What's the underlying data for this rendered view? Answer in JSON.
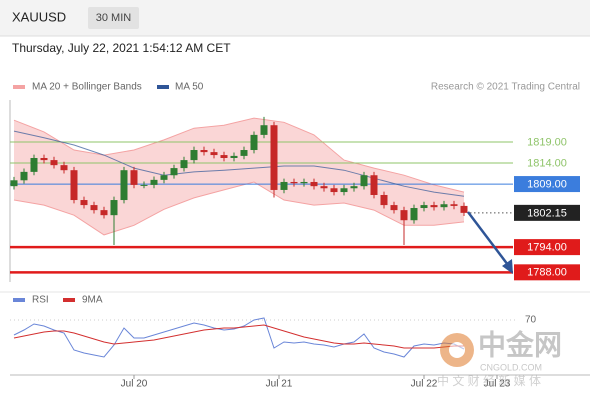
{
  "header": {
    "symbol": "XAUUSD",
    "timeframe": "30 MIN",
    "datetime": "Thursday, July 22, 2021 1:54:12 AM CET"
  },
  "watermark": {
    "logo": "中金网",
    "domain": "CNGOLD.COM",
    "tagline": "中 文 财 经 新 媒 体"
  },
  "chart_data": [
    {
      "type": "candlestick",
      "credit": "Research © 2021 Trading Central",
      "up_color": "#2e7d32",
      "down_color": "#c62828",
      "xlim": [
        -0.4,
        57.6
      ],
      "ylim": [
        1785.7,
        1829
      ],
      "x": [
        0,
        1,
        2,
        3,
        4,
        5,
        6,
        7,
        8,
        9,
        10,
        11,
        12,
        13,
        14,
        15,
        16,
        17,
        18,
        19,
        20,
        21,
        22,
        23,
        24,
        25,
        26,
        27,
        28,
        29,
        30,
        31,
        32,
        33,
        34,
        35,
        36,
        37,
        38,
        39,
        40,
        41,
        42,
        43,
        44,
        45
      ],
      "open": [
        1808.5,
        1809.9,
        1811.9,
        1815.2,
        1814.7,
        1813.5,
        1812.3,
        1805.2,
        1804.0,
        1802.8,
        1801.6,
        1805.2,
        1812.3,
        1808.8,
        1808.8,
        1810.0,
        1811.1,
        1812.8,
        1814.7,
        1817.1,
        1816.6,
        1815.9,
        1815.2,
        1815.7,
        1817.1,
        1820.7,
        1823.0,
        1807.6,
        1809.5,
        1809.2,
        1809.5,
        1808.5,
        1808.0,
        1807.1,
        1808.0,
        1808.5,
        1811.1,
        1806.4,
        1804.0,
        1802.8,
        1800.4,
        1803.3,
        1804.0,
        1803.5,
        1804.2,
        1803.8
      ],
      "high": [
        1810.7,
        1812.7,
        1816.0,
        1816.0,
        1815.5,
        1814.3,
        1813.1,
        1806.0,
        1804.8,
        1803.6,
        1806.0,
        1813.1,
        1813.1,
        1809.6,
        1810.8,
        1811.9,
        1813.6,
        1815.5,
        1817.9,
        1817.9,
        1817.4,
        1816.7,
        1816.5,
        1817.9,
        1821.5,
        1825.0,
        1823.8,
        1810.3,
        1810.3,
        1810.3,
        1810.3,
        1809.3,
        1808.8,
        1808.8,
        1809.3,
        1811.9,
        1811.9,
        1807.2,
        1804.8,
        1803.6,
        1804.1,
        1804.8,
        1804.8,
        1805.0,
        1805.0,
        1804.6
      ],
      "low": [
        1807.7,
        1809.1,
        1811.1,
        1813.9,
        1812.7,
        1811.5,
        1804.4,
        1803.2,
        1802.0,
        1800.8,
        1794.5,
        1804.4,
        1808.0,
        1808.0,
        1808.0,
        1809.2,
        1810.3,
        1812.0,
        1813.9,
        1815.8,
        1815.1,
        1814.4,
        1814.4,
        1814.9,
        1816.3,
        1819.9,
        1805.8,
        1806.8,
        1808.4,
        1808.4,
        1807.7,
        1807.2,
        1806.3,
        1806.3,
        1807.2,
        1807.7,
        1805.6,
        1803.2,
        1802.0,
        1794.5,
        1799.6,
        1802.5,
        1802.7,
        1802.7,
        1803.0,
        1801.4
      ],
      "close": [
        1809.9,
        1811.9,
        1815.2,
        1814.7,
        1813.5,
        1812.3,
        1805.2,
        1804.0,
        1802.8,
        1801.6,
        1805.2,
        1812.3,
        1808.8,
        1808.8,
        1810.0,
        1811.1,
        1812.8,
        1814.7,
        1817.1,
        1816.6,
        1815.9,
        1815.2,
        1815.7,
        1817.1,
        1820.7,
        1823.0,
        1807.6,
        1809.5,
        1809.2,
        1809.5,
        1808.5,
        1808.0,
        1807.1,
        1808.0,
        1808.5,
        1811.1,
        1806.4,
        1804.0,
        1802.8,
        1800.4,
        1803.3,
        1804.0,
        1803.5,
        1804.2,
        1803.8,
        1802.15
      ],
      "bollinger": {
        "name": "MA 20 + Bollinger Bands",
        "color": "#f4a3a3",
        "x": [
          0,
          3,
          6,
          9,
          12,
          15,
          18,
          21,
          24,
          27,
          30,
          33,
          36,
          39,
          42,
          45
        ],
        "upper": [
          1824.2,
          1821.4,
          1817.1,
          1815.9,
          1817.1,
          1819.5,
          1822.3,
          1823.0,
          1824.7,
          1823.7,
          1820.7,
          1814.7,
          1812.8,
          1811.1,
          1808.8,
          1807.1
        ],
        "lower": [
          1805.2,
          1804.0,
          1801.6,
          1796.9,
          1799.2,
          1803.0,
          1805.7,
          1807.6,
          1809.5,
          1805.2,
          1804.0,
          1804.5,
          1802.8,
          1799.2,
          1799.2,
          1800.0
        ]
      },
      "ma50": {
        "name": "MA 50",
        "color": "#2f5597",
        "x": [
          0,
          3,
          6,
          9,
          12,
          15,
          18,
          21,
          24,
          27,
          30,
          33,
          36,
          39,
          42,
          45
        ],
        "values": [
          1821.6,
          1820.0,
          1818.3,
          1815.9,
          1812.8,
          1811.1,
          1811.9,
          1812.3,
          1812.8,
          1813.3,
          1813.3,
          1812.3,
          1810.4,
          1808.5,
          1807.1,
          1806.1
        ]
      },
      "levels": [
        {
          "value": 1819,
          "label": "1819.00",
          "color": "#8fc46a",
          "label_style": "text",
          "line_style": "solid"
        },
        {
          "value": 1814,
          "label": "1814.00",
          "color": "#8fc46a",
          "label_style": "text",
          "line_style": "solid"
        },
        {
          "value": 1809,
          "label": "1809.00",
          "color": "#3b7ddd",
          "label_style": "box",
          "line_style": "solid"
        },
        {
          "value": 1802.15,
          "label": "1802.15",
          "color": "#222222",
          "label_style": "box",
          "line_style": "dotted"
        },
        {
          "value": 1794,
          "label": "1794.00",
          "color": "#e01b1b",
          "label_style": "box",
          "line_style": "thick"
        },
        {
          "value": 1788,
          "label": "1788.00",
          "color": "#e01b1b",
          "label_style": "box",
          "line_style": "thick"
        }
      ]
    },
    {
      "type": "line",
      "xlim": [
        -0.4,
        57.6
      ],
      "ylim": [
        15,
        85
      ],
      "yticks": [
        70
      ],
      "xticks": [
        {
          "value": 12,
          "label": "Jul 20"
        },
        {
          "value": 26.5,
          "label": "Jul 21"
        },
        {
          "value": 41,
          "label": "Jul 22"
        },
        {
          "value": 48.3,
          "label": "Jul 23"
        }
      ],
      "x": [
        0,
        1,
        2,
        3,
        4,
        5,
        6,
        7,
        8,
        9,
        10,
        11,
        12,
        13,
        14,
        15,
        16,
        17,
        18,
        19,
        20,
        21,
        22,
        23,
        24,
        25,
        26,
        27,
        28,
        29,
        30,
        31,
        32,
        33,
        34,
        35,
        36,
        37,
        38,
        39,
        40,
        41,
        42,
        43,
        44,
        45
      ],
      "series": [
        {
          "name": "RSI",
          "color": "#6a86d8",
          "values": [
            55,
            60,
            66,
            64,
            60,
            57,
            40,
            37,
            35,
            33,
            45,
            62,
            52,
            52,
            55,
            58,
            61,
            64,
            67,
            65,
            62,
            60,
            61,
            64,
            70,
            72,
            42,
            48,
            47,
            48,
            46,
            45,
            43,
            46,
            48,
            56,
            42,
            38,
            36,
            33,
            44,
            46,
            45,
            47,
            46,
            41
          ]
        },
        {
          "name": "9MA",
          "color": "#d32f2f",
          "values": [
            52,
            54,
            56,
            58,
            59,
            59,
            57,
            54,
            51,
            48,
            46,
            47,
            48,
            49,
            50,
            52,
            54,
            56,
            58,
            60,
            61,
            62,
            62,
            63,
            64,
            65,
            62,
            59,
            56,
            53,
            51,
            49,
            47,
            46,
            46,
            47,
            46,
            45,
            44,
            42,
            42,
            42,
            42,
            43,
            44,
            44
          ]
        }
      ]
    }
  ]
}
